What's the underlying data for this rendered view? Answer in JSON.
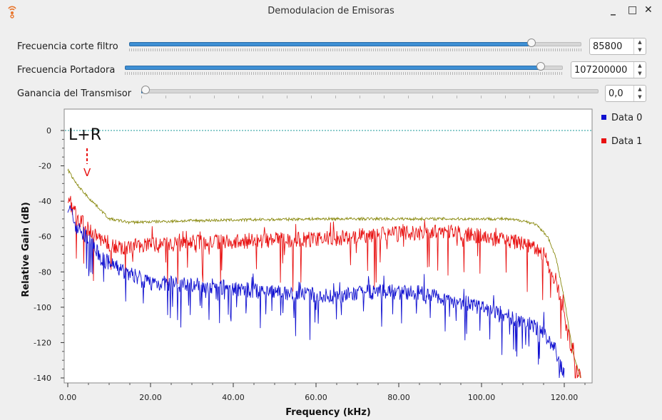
{
  "window": {
    "title": "Demodulacion de Emisoras",
    "minimize": "_",
    "maximize": "□",
    "close": "✕"
  },
  "controls": [
    {
      "label": "Frecuencia corte filtro",
      "value": "85800",
      "fraction": 0.89
    },
    {
      "label": "Frecuencia Portadora",
      "value": "107200000",
      "fraction": 0.95
    },
    {
      "label": "Ganancia del Transmisor",
      "value": "0,0",
      "fraction": 0.0
    }
  ],
  "chart_data": {
    "type": "line",
    "xlabel": "Frequency (kHz)",
    "ylabel": "Relative Gain (dB)",
    "xlim": [
      0,
      125
    ],
    "ylim": [
      -140,
      8
    ],
    "xticks": [
      "0.00",
      "20.00",
      "40.00",
      "60.00",
      "80.00",
      "100.00",
      "120.00"
    ],
    "yticks": [
      "0",
      "-20",
      "-40",
      "-60",
      "-80",
      "-100",
      "-120",
      "-140"
    ],
    "annotation": "L+R",
    "annotation_arrow": "V",
    "legend": [
      "Data 0",
      "Data 1"
    ],
    "legend_placement": "right",
    "reference_line_y": 0,
    "series": [
      {
        "name": "Data 0",
        "color": "#1010d0",
        "x": [
          0,
          2,
          5,
          8,
          12,
          20,
          35,
          50,
          65,
          75,
          85,
          95,
          105,
          110,
          115,
          118,
          120
        ],
        "y": [
          -42,
          -54,
          -62,
          -72,
          -78,
          -86,
          -88,
          -92,
          -94,
          -91,
          -92,
          -97,
          -104,
          -108,
          -114,
          -125,
          -138
        ]
      },
      {
        "name": "Data 1",
        "color": "#e81010",
        "x": [
          0,
          2,
          5,
          8,
          12,
          20,
          35,
          50,
          65,
          75,
          85,
          95,
          105,
          110,
          115,
          118,
          120,
          122,
          124
        ],
        "y": [
          -38,
          -48,
          -56,
          -62,
          -66,
          -65,
          -63,
          -62,
          -61,
          -59,
          -58,
          -58,
          -62,
          -64,
          -70,
          -85,
          -105,
          -125,
          -140
        ]
      },
      {
        "name": "",
        "color": "#8a8a10",
        "x": [
          0,
          2,
          5,
          8,
          10,
          15,
          30,
          60,
          90,
          105,
          110,
          113,
          116,
          118,
          120,
          122,
          124
        ],
        "y": [
          -22,
          -30,
          -38,
          -45,
          -50,
          -52,
          -51,
          -50,
          -50,
          -50,
          -51,
          -53,
          -60,
          -72,
          -95,
          -125,
          -140
        ]
      }
    ]
  }
}
